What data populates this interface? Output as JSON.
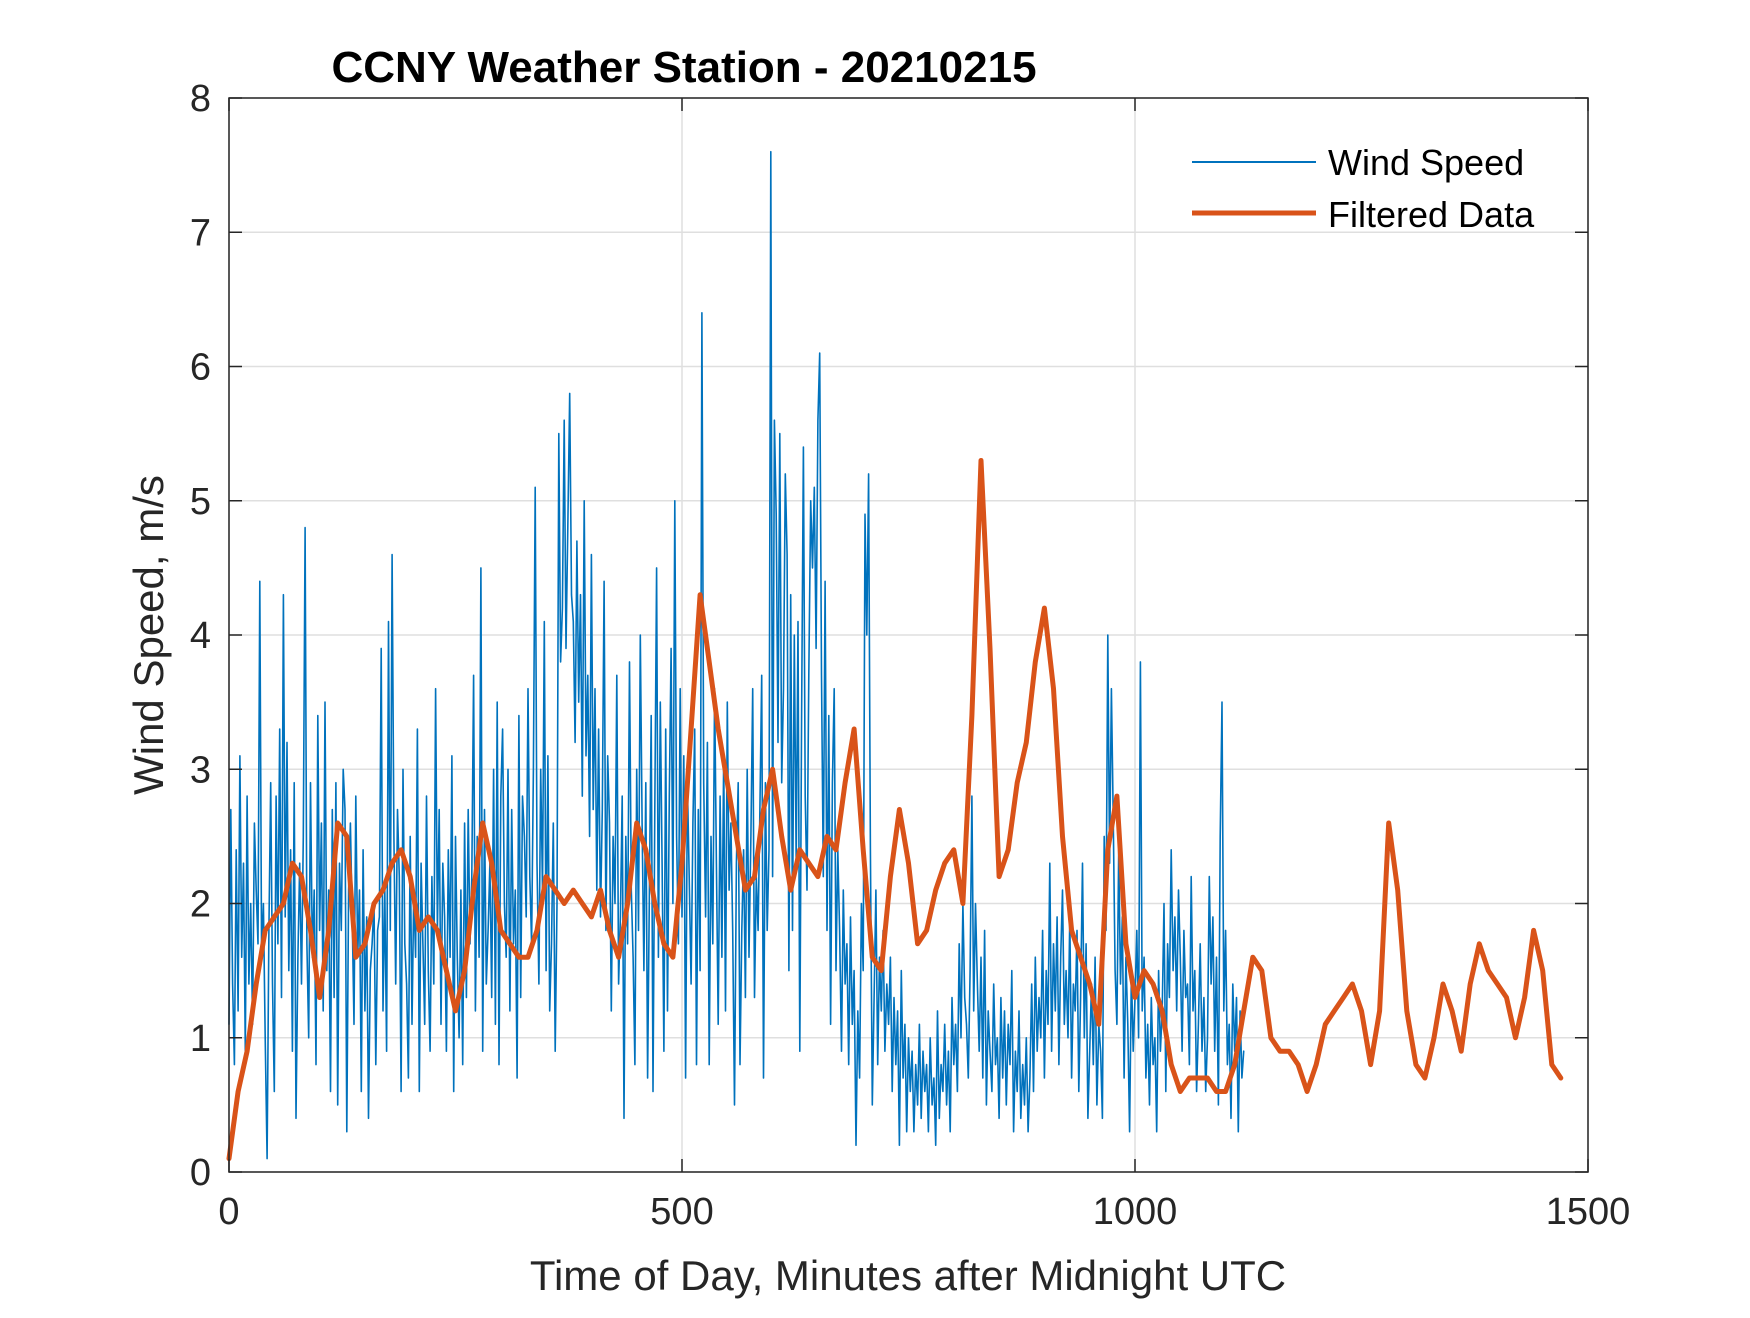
{
  "chart_data": {
    "type": "line",
    "title": "CCNY Weather Station - 20210215",
    "xlabel": "Time of Day, Minutes after Midnight UTC",
    "ylabel": "Wind Speed, m/s",
    "xlim": [
      0,
      1500
    ],
    "ylim": [
      0,
      8
    ],
    "xticks": [
      0,
      500,
      1000,
      1500
    ],
    "xtick_labels": [
      "0",
      "500",
      "1000",
      "1500"
    ],
    "yticks": [
      0,
      1,
      2,
      3,
      4,
      5,
      6,
      7,
      8
    ],
    "ytick_labels": [
      "0",
      "1",
      "2",
      "3",
      "4",
      "5",
      "6",
      "7",
      "8"
    ],
    "grid": true,
    "legend_position": "top-right",
    "series": [
      {
        "name": "Wind Speed",
        "color": "#0072BD",
        "style": "thin",
        "x_start": 0,
        "x_step": 2,
        "values": [
          1.1,
          2.7,
          1.4,
          0.8,
          2.4,
          1.2,
          3.1,
          1.6,
          2.3,
          0.9,
          2.8,
          1.4,
          2.0,
          1.1,
          2.6,
          2.1,
          1.7,
          4.4,
          1.6,
          2.0,
          1.0,
          0.1,
          1.8,
          2.9,
          1.4,
          0.6,
          2.8,
          1.7,
          3.3,
          1.3,
          4.3,
          1.9,
          3.2,
          1.5,
          2.4,
          0.9,
          2.9,
          0.4,
          1.6,
          2.3,
          1.4,
          2.5,
          4.8,
          1.7,
          1.0,
          2.9,
          1.6,
          2.1,
          0.8,
          3.4,
          1.8,
          2.6,
          1.2,
          3.5,
          1.5,
          2.1,
          0.6,
          2.7,
          1.3,
          2.9,
          0.5,
          2.3,
          1.8,
          3.0,
          2.7,
          0.3,
          2.1,
          2.6,
          1.9,
          1.1,
          2.8,
          1.6,
          2.1,
          0.6,
          2.4,
          1.2,
          1.9,
          0.4,
          1.5,
          1.7,
          2.0,
          0.8,
          1.8,
          1.9,
          3.9,
          1.2,
          2.1,
          0.9,
          4.1,
          1.8,
          4.6,
          2.5,
          1.4,
          2.7,
          2.2,
          0.6,
          3.0,
          1.7,
          1.4,
          0.7,
          2.5,
          1.1,
          2.1,
          1.6,
          3.3,
          0.6,
          2.3,
          1.7,
          1.1,
          2.8,
          1.5,
          0.9,
          2.2,
          1.4,
          3.6,
          1.8,
          2.7,
          1.1,
          2.3,
          1.9,
          0.9,
          2.4,
          1.6,
          3.1,
          0.6,
          2.5,
          1.6,
          1.0,
          2.1,
          0.8,
          2.6,
          1.3,
          2.7,
          1.7,
          2.2,
          3.7,
          1.2,
          2.5,
          1.6,
          4.5,
          0.9,
          2.7,
          1.4,
          1.8,
          2.3,
          1.3,
          3.0,
          1.1,
          3.5,
          0.8,
          2.8,
          3.3,
          2.0,
          1.6,
          3.0,
          1.2,
          2.7,
          1.7,
          2.1,
          0.7,
          3.4,
          1.3,
          2.8,
          2.5,
          1.9,
          3.6,
          2.2,
          1.7,
          3.0,
          5.1,
          2.3,
          1.4,
          3.0,
          2.1,
          4.1,
          1.5,
          3.1,
          1.2,
          1.7,
          2.6,
          0.9,
          2.0,
          5.5,
          3.8,
          4.2,
          5.6,
          3.9,
          4.8,
          5.8,
          4.3,
          4.1,
          3.2,
          4.7,
          3.5,
          4.3,
          2.8,
          5.0,
          3.1,
          3.7,
          2.5,
          4.6,
          2.7,
          3.6,
          2.1,
          3.3,
          1.9,
          2.7,
          4.4,
          1.8,
          3.1,
          2.6,
          1.2,
          2.5,
          2.0,
          3.7,
          1.4,
          1.9,
          2.8,
          0.4,
          2.5,
          1.7,
          3.8,
          2.1,
          1.6,
          0.8,
          3.0,
          1.8,
          4.0,
          2.6,
          1.5,
          2.9,
          0.7,
          2.1,
          3.4,
          0.6,
          2.7,
          4.5,
          1.6,
          3.5,
          2.3,
          0.9,
          3.3,
          1.2,
          2.8,
          3.9,
          2.0,
          5.0,
          2.5,
          1.7,
          3.6,
          1.9,
          3.1,
          0.7,
          2.9,
          2.2,
          1.4,
          2.6,
          3.3,
          0.8,
          2.7,
          1.5,
          6.4,
          2.9,
          1.9,
          3.2,
          0.8,
          2.5,
          1.7,
          3.6,
          2.3,
          1.1,
          2.8,
          1.6,
          3.1,
          1.2,
          3.5,
          2.1,
          2.6,
          1.8,
          0.5,
          2.3,
          2.9,
          0.8,
          1.8,
          2.4,
          1.3,
          3.0,
          1.6,
          2.5,
          3.6,
          1.3,
          2.2,
          1.8,
          2.7,
          3.7,
          0.7,
          2.9,
          1.8,
          2.4,
          7.6,
          2.2,
          5.6,
          4.9,
          3.2,
          5.5,
          2.9,
          3.6,
          5.2,
          4.6,
          1.5,
          4.3,
          1.8,
          4.0,
          2.3,
          4.1,
          0.9,
          3.4,
          5.4,
          2.8,
          2.1,
          3.7,
          5.0,
          4.5,
          5.1,
          3.9,
          5.6,
          6.1,
          3.7,
          2.2,
          4.4,
          1.8,
          3.4,
          1.1,
          2.9,
          3.6,
          1.5,
          2.4,
          1.8,
          0.9,
          2.1,
          1.4,
          1.7,
          0.8,
          1.9,
          1.1,
          1.5,
          0.2,
          1.2,
          0.7,
          2.0,
          1.5,
          4.9,
          4.0,
          5.2,
          2.4,
          0.5,
          1.3,
          2.1,
          0.8,
          1.6,
          1.2,
          1.8,
          0.9,
          1.4,
          1.1,
          1.6,
          0.6,
          1.3,
          0.8,
          1.2,
          0.2,
          1.5,
          0.7,
          1.1,
          0.3,
          1.0,
          0.6,
          0.9,
          0.3,
          0.8,
          0.5,
          1.1,
          0.4,
          0.9,
          0.6,
          0.8,
          0.3,
          1.0,
          0.5,
          0.7,
          0.2,
          1.2,
          0.4,
          0.8,
          0.6,
          1.1,
          0.5,
          0.9,
          0.3,
          1.3,
          0.8,
          1.1,
          0.6,
          1.7,
          1.0,
          2.0,
          1.3,
          1.1,
          0.7,
          1.5,
          2.8,
          1.2,
          2.0,
          1.4,
          0.9,
          1.6,
          0.7,
          1.8,
          0.5,
          1.2,
          0.9,
          0.6,
          1.4,
          0.8,
          1.0,
          0.4,
          1.3,
          0.7,
          1.2,
          0.5,
          1.1,
          0.8,
          1.5,
          0.3,
          0.9,
          0.6,
          1.2,
          0.4,
          0.8,
          0.5,
          1.0,
          0.3,
          0.7,
          1.4,
          0.6,
          1.6,
          0.9,
          1.3,
          1.0,
          1.8,
          0.7,
          1.5,
          1.1,
          2.3,
          0.9,
          1.7,
          1.2,
          1.9,
          0.8,
          1.6,
          2.1,
          1.1,
          1.5,
          1.0,
          1.9,
          0.7,
          1.4,
          1.2,
          1.8,
          0.6,
          1.3,
          2.3,
          1.0,
          1.7,
          0.4,
          0.9,
          1.4,
          0.8,
          1.6,
          0.5,
          1.1,
          0.9,
          0.4,
          2.5,
          1.8,
          4.0,
          2.3,
          3.6,
          2.6,
          1.5,
          1.1,
          2.4,
          1.4,
          1.9,
          0.7,
          1.6,
          1.1,
          0.3,
          1.5,
          0.9,
          1.3,
          1.8,
          1.0,
          3.8,
          1.2,
          1.6,
          0.7,
          1.1,
          0.5,
          1.3,
          0.8,
          1.0,
          0.3,
          1.5,
          0.9,
          1.2,
          2.0,
          0.6,
          1.7,
          1.3,
          2.4,
          1.5,
          1.9,
          1.2,
          2.1,
          1.6,
          0.9,
          1.8,
          1.3,
          1.4,
          0.8,
          2.2,
          1.2,
          1.5,
          0.6,
          1.1,
          1.7,
          0.9,
          1.3,
          0.6,
          1.0,
          2.2,
          1.4,
          1.9,
          0.9,
          1.6,
          0.5,
          2.5,
          3.5,
          1.2,
          1.8,
          0.8,
          1.1,
          0.4,
          1.4,
          0.9,
          1.3,
          0.3,
          1.2,
          0.7,
          0.9
        ]
      },
      {
        "name": "Filtered Data",
        "color": "#D95319",
        "style": "thick",
        "x_start": 0,
        "x_step": 10,
        "values": [
          0.1,
          0.6,
          0.9,
          1.4,
          1.8,
          1.9,
          2.0,
          2.3,
          2.2,
          1.8,
          1.3,
          1.8,
          2.6,
          2.5,
          1.6,
          1.7,
          2.0,
          2.1,
          2.3,
          2.4,
          2.2,
          1.8,
          1.9,
          1.8,
          1.5,
          1.2,
          1.5,
          2.1,
          2.6,
          2.3,
          1.8,
          1.7,
          1.6,
          1.6,
          1.8,
          2.2,
          2.1,
          2.0,
          2.1,
          2.0,
          1.9,
          2.1,
          1.8,
          1.6,
          2.0,
          2.6,
          2.4,
          2.0,
          1.7,
          1.6,
          2.3,
          3.3,
          4.3,
          3.8,
          3.3,
          2.9,
          2.5,
          2.1,
          2.2,
          2.7,
          3.0,
          2.5,
          2.1,
          2.4,
          2.3,
          2.2,
          2.5,
          2.4,
          2.9,
          3.3,
          2.4,
          1.6,
          1.5,
          2.2,
          2.7,
          2.3,
          1.7,
          1.8,
          2.1,
          2.3,
          2.4,
          2.0,
          3.4,
          5.3,
          3.9,
          2.2,
          2.4,
          2.9,
          3.2,
          3.8,
          4.2,
          3.6,
          2.5,
          1.8,
          1.6,
          1.4,
          1.1,
          2.4,
          2.8,
          1.7,
          1.3,
          1.5,
          1.4,
          1.2,
          0.8,
          0.6,
          0.7,
          0.7,
          0.7,
          0.6,
          0.6,
          0.8,
          1.2,
          1.6,
          1.5,
          1.0,
          0.9,
          0.9,
          0.8,
          0.6,
          0.8,
          1.1,
          1.2,
          1.3,
          1.4,
          1.2,
          0.8,
          1.2,
          2.6,
          2.1,
          1.2,
          0.8,
          0.7,
          1.0,
          1.4,
          1.2,
          0.9,
          1.4,
          1.7,
          1.5,
          1.4,
          1.3,
          1.0,
          1.3,
          1.8,
          1.5,
          0.8,
          0.7
        ]
      }
    ]
  }
}
